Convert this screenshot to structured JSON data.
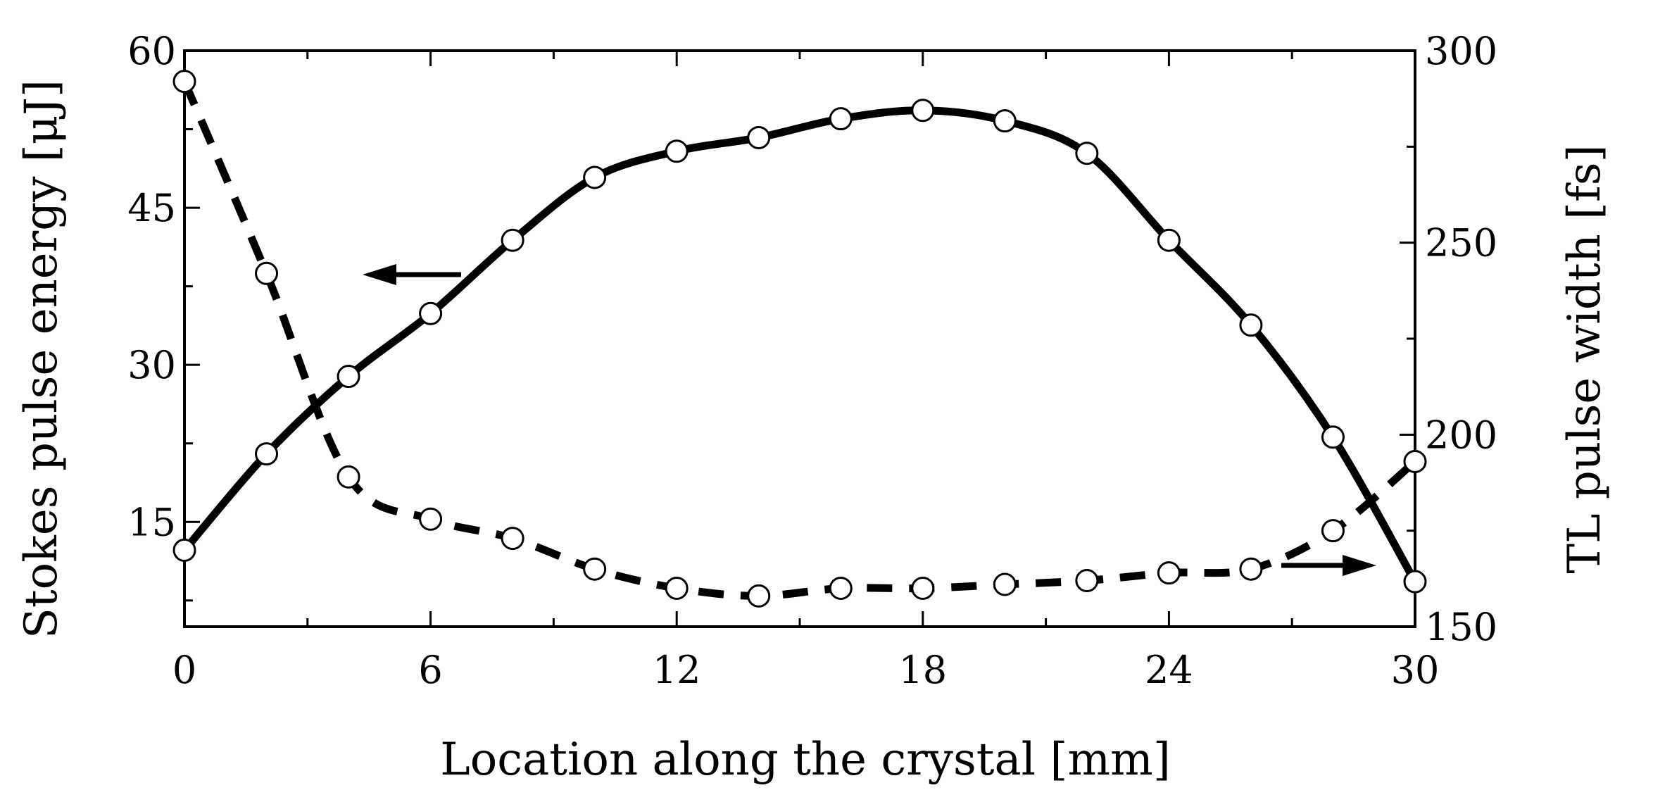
{
  "chart_data": {
    "type": "line",
    "xlabel": "Location along the crystal [mm]",
    "ylabel_left": "Stokes pulse energy [μJ]",
    "ylabel_right": "TL pulse width [fs]",
    "xlim": [
      0,
      30
    ],
    "ylim_left": [
      5,
      60
    ],
    "ylim_right": [
      150,
      300
    ],
    "x_ticks": [
      "0",
      "6",
      "12",
      "18",
      "24",
      "30"
    ],
    "y_left_ticks": [
      "15",
      "30",
      "45",
      "60"
    ],
    "y_right_ticks": [
      "150",
      "200",
      "250",
      "300"
    ],
    "grid": false,
    "series": [
      {
        "axis": "left",
        "style": "solid",
        "color": "#000000",
        "x": [
          0,
          2,
          4,
          6,
          8,
          10,
          12,
          14,
          16,
          18,
          20,
          22,
          24,
          26,
          28,
          30
        ],
        "y": [
          12.3,
          21.5,
          28.9,
          34.9,
          41.9,
          47.9,
          50.4,
          51.7,
          53.5,
          54.3,
          53.3,
          50.2,
          41.9,
          33.8,
          23.1,
          9.3
        ]
      },
      {
        "axis": "right",
        "style": "dashed",
        "color": "#000000",
        "x": [
          0,
          2,
          4,
          6,
          8,
          10,
          12,
          14,
          16,
          18,
          20,
          22,
          24,
          26,
          28,
          30
        ],
        "y": [
          292,
          242,
          189,
          178,
          173,
          165,
          160,
          158,
          160,
          160,
          161,
          162,
          164,
          165,
          175,
          193
        ]
      }
    ],
    "annotations": [
      {
        "type": "arrow",
        "direction": "left",
        "points_to_axis": "left"
      },
      {
        "type": "arrow",
        "direction": "right",
        "points_to_axis": "right"
      }
    ]
  }
}
